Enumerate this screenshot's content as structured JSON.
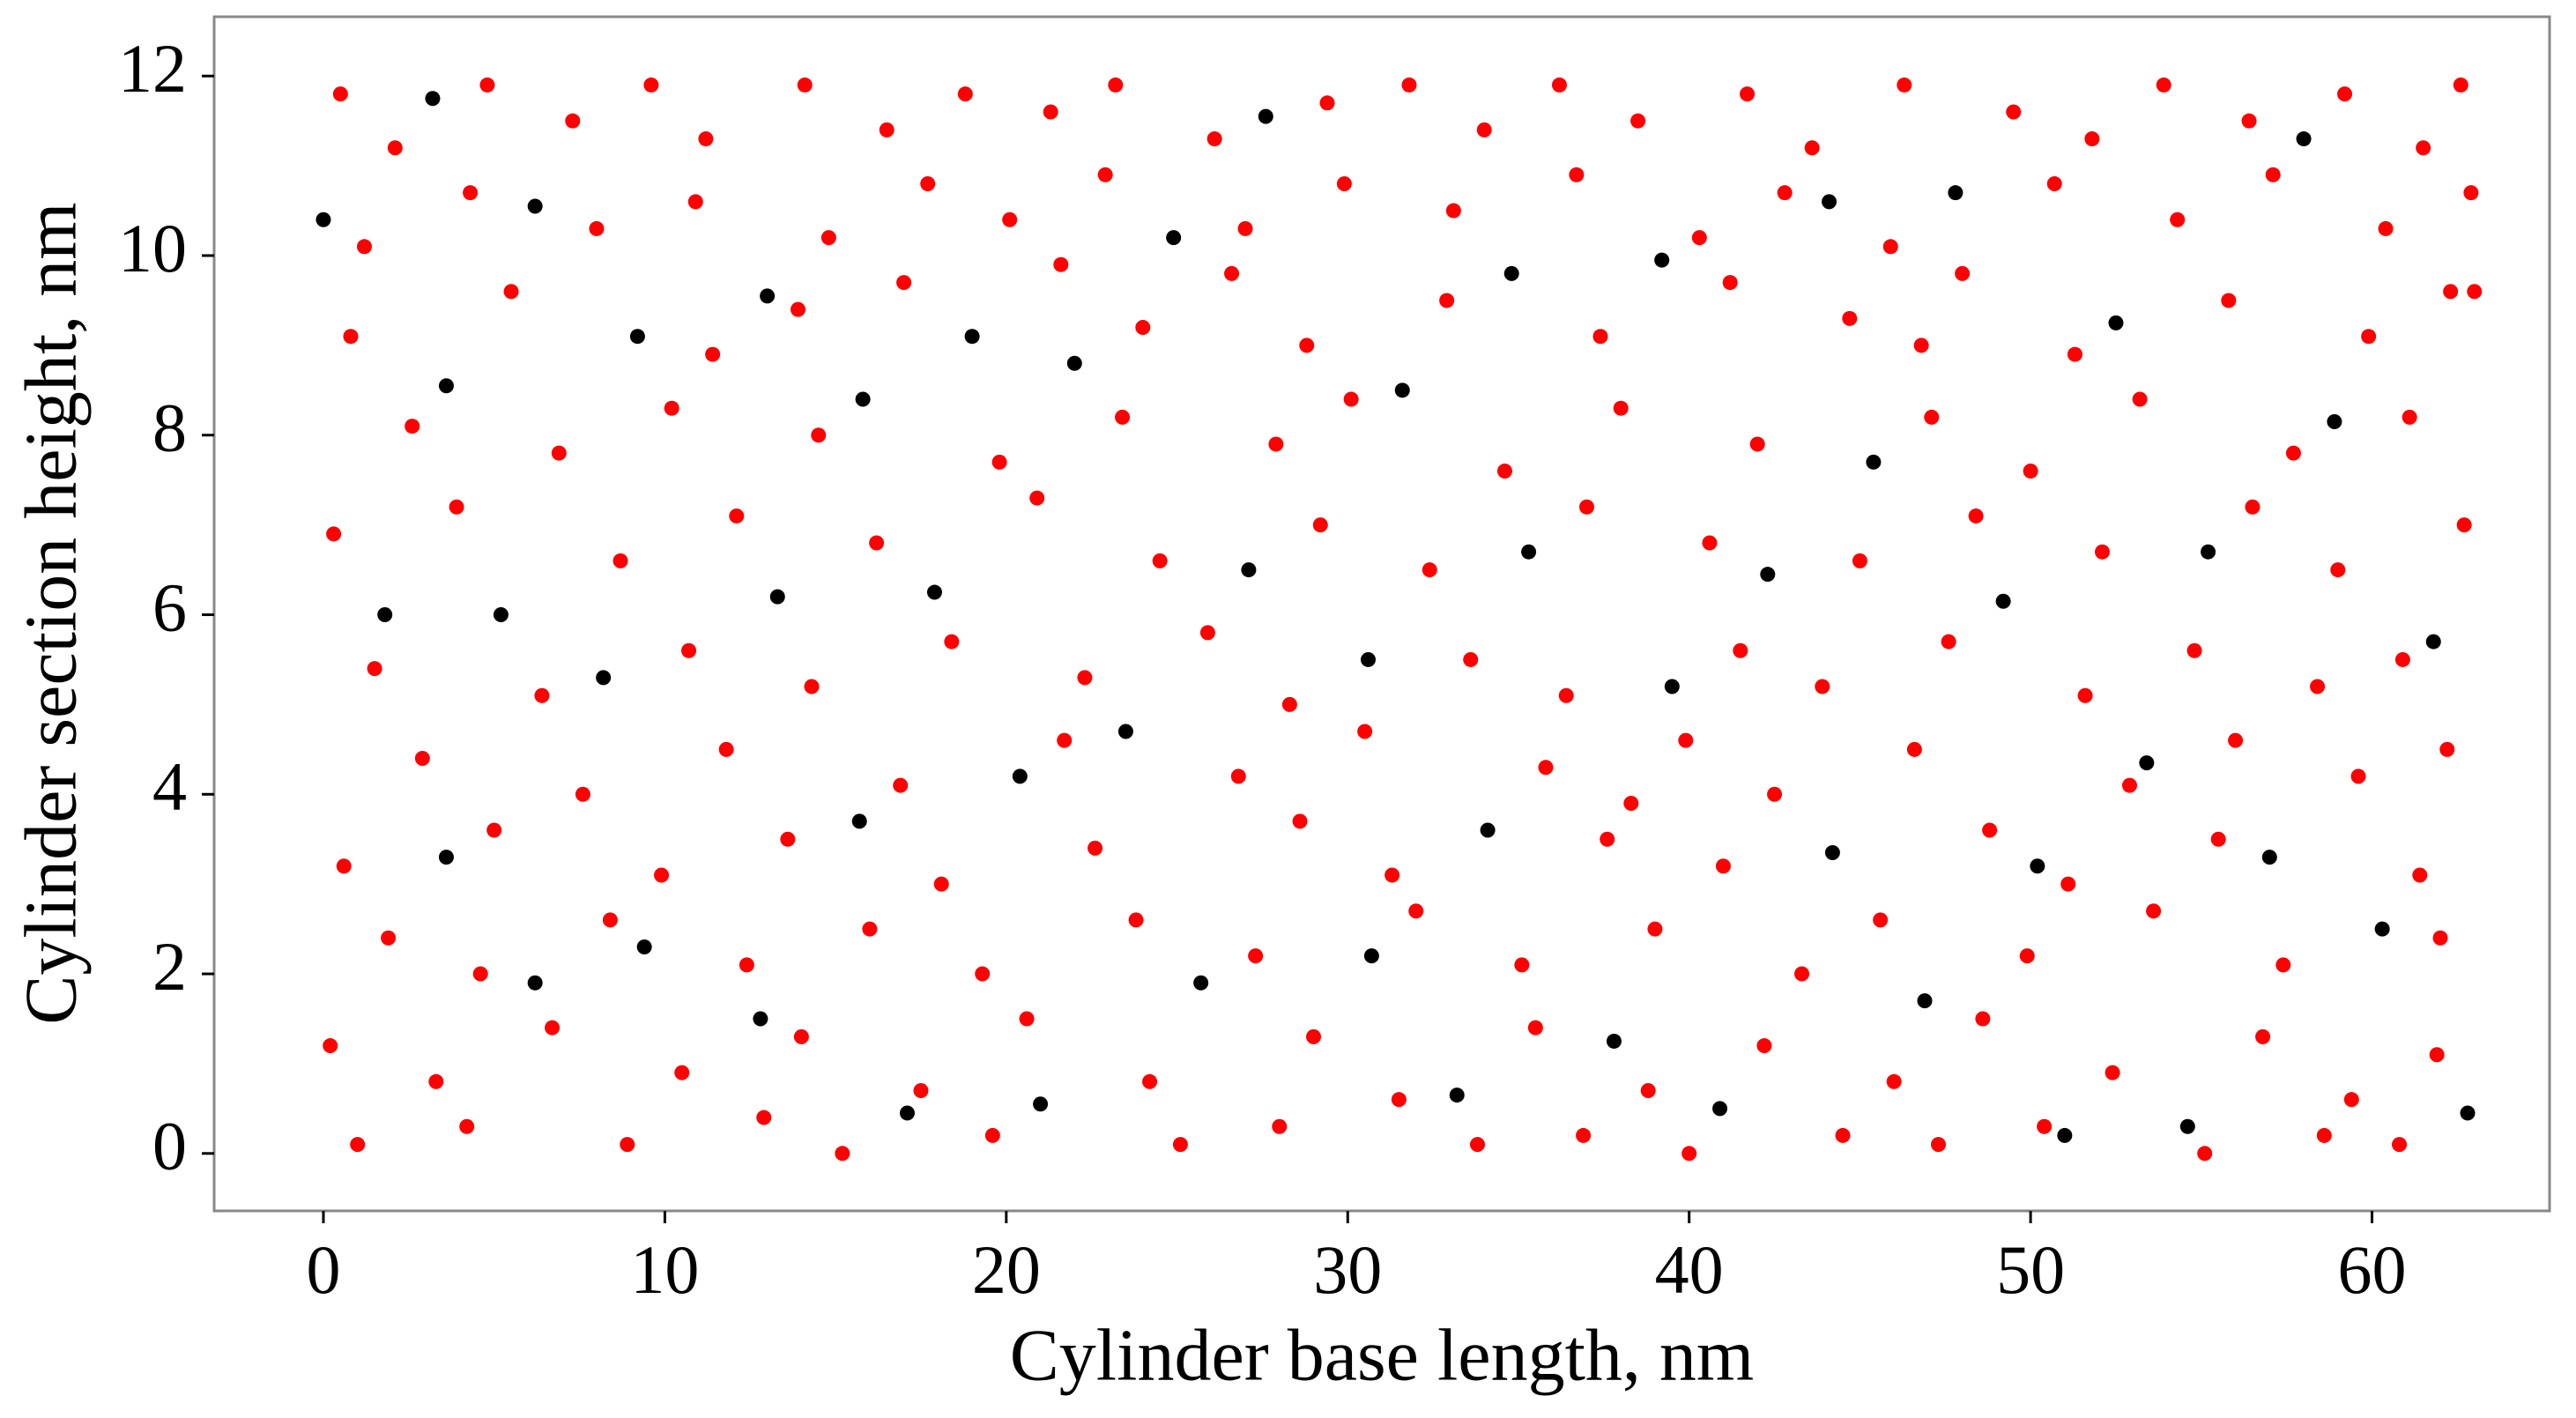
{
  "chart_data": {
    "type": "scatter",
    "xlabel": "Cylinder base length, nm",
    "ylabel": "Cylinder section height, nm",
    "xlim": [
      -3.2,
      65.2
    ],
    "ylim": [
      -0.64,
      12.66
    ],
    "xticks": [
      0,
      10,
      20,
      30,
      40,
      50,
      60
    ],
    "yticks": [
      0,
      2,
      4,
      6,
      8,
      10,
      12
    ],
    "grid": false,
    "series": [
      {
        "color": "#ff0000",
        "x": [
          0.5,
          2.1,
          4.8,
          7.3,
          9.6,
          11.2,
          14.1,
          16.5,
          18.8,
          21.3,
          23.2,
          26.1,
          29.4,
          31.8,
          34.0,
          36.2,
          38.5,
          41.7,
          43.6,
          46.3,
          49.5,
          51.8,
          53.9,
          56.4,
          59.2,
          61.5,
          62.6,
          1.2,
          4.3,
          8.0,
          10.9,
          14.8,
          17.7,
          20.1,
          22.9,
          27.0,
          29.9,
          33.1,
          36.7,
          40.3,
          42.8,
          45.9,
          50.7,
          54.3,
          57.1,
          60.4,
          62.9,
          0.8,
          5.5,
          11.4,
          13.9,
          17.0,
          24.0,
          26.6,
          28.8,
          32.9,
          37.4,
          41.2,
          44.7,
          48.0,
          51.3,
          55.8,
          59.9,
          62.3,
          2.6,
          6.9,
          10.2,
          14.5,
          19.8,
          23.4,
          27.9,
          30.1,
          34.6,
          38.0,
          42.0,
          47.1,
          50.0,
          53.2,
          57.7,
          61.1,
          0.3,
          3.9,
          8.7,
          12.1,
          16.2,
          20.9,
          24.5,
          29.2,
          32.4,
          37.0,
          40.6,
          45.0,
          48.4,
          52.1,
          56.5,
          59.0,
          62.7,
          1.5,
          6.4,
          10.7,
          14.3,
          18.4,
          22.3,
          25.9,
          28.3,
          33.6,
          36.4,
          41.5,
          43.9,
          47.6,
          51.6,
          54.8,
          58.4,
          60.9,
          2.9,
          7.6,
          11.8,
          16.9,
          21.7,
          26.8,
          30.5,
          35.8,
          39.9,
          42.5,
          46.6,
          52.9,
          56.0,
          59.6,
          62.2,
          0.6,
          5.0,
          9.9,
          13.6,
          18.1,
          22.6,
          28.6,
          31.3,
          37.6,
          41.0,
          48.8,
          51.1,
          55.5,
          61.4,
          1.9,
          4.6,
          8.4,
          12.4,
          16.0,
          19.3,
          23.8,
          27.3,
          32.0,
          35.1,
          39.0,
          43.3,
          45.6,
          49.9,
          53.6,
          57.4,
          62.0,
          0.2,
          3.3,
          6.7,
          10.5,
          14.0,
          17.5,
          20.6,
          24.2,
          29.0,
          31.5,
          35.5,
          38.8,
          42.2,
          46.0,
          48.6,
          52.4,
          56.8,
          59.4,
          61.9,
          1.0,
          4.2,
          8.9,
          12.9,
          15.2,
          19.6,
          25.1,
          28.0,
          33.8,
          36.9,
          40.0,
          44.5,
          47.3,
          50.4,
          55.1,
          58.6,
          60.8,
          63.0,
          21.6,
          38.3,
          46.8
        ],
        "y": [
          11.8,
          11.2,
          11.9,
          11.5,
          11.9,
          11.3,
          11.9,
          11.4,
          11.8,
          11.6,
          11.9,
          11.3,
          11.7,
          11.9,
          11.4,
          11.9,
          11.5,
          11.8,
          11.2,
          11.9,
          11.6,
          11.3,
          11.9,
          11.5,
          11.8,
          11.2,
          11.9,
          10.1,
          10.7,
          10.3,
          10.6,
          10.2,
          10.8,
          10.4,
          10.9,
          10.3,
          10.8,
          10.5,
          10.9,
          10.2,
          10.7,
          10.1,
          10.8,
          10.4,
          10.9,
          10.3,
          10.7,
          9.1,
          9.6,
          8.9,
          9.4,
          9.7,
          9.2,
          9.8,
          9.0,
          9.5,
          9.1,
          9.7,
          9.3,
          9.8,
          8.9,
          9.5,
          9.1,
          9.6,
          8.1,
          7.8,
          8.3,
          8.0,
          7.7,
          8.2,
          7.9,
          8.4,
          7.6,
          8.3,
          7.9,
          8.2,
          7.6,
          8.4,
          7.8,
          8.2,
          6.9,
          7.2,
          6.6,
          7.1,
          6.8,
          7.3,
          6.6,
          7.0,
          6.5,
          7.2,
          6.8,
          6.6,
          7.1,
          6.7,
          7.2,
          6.5,
          7.0,
          5.4,
          5.1,
          5.6,
          5.2,
          5.7,
          5.3,
          5.8,
          5.0,
          5.5,
          5.1,
          5.6,
          5.2,
          5.7,
          5.1,
          5.6,
          5.2,
          5.5,
          4.4,
          4.0,
          4.5,
          4.1,
          4.6,
          4.2,
          4.7,
          4.3,
          4.6,
          4.0,
          4.5,
          4.1,
          4.6,
          4.2,
          4.5,
          3.2,
          3.6,
          3.1,
          3.5,
          3.0,
          3.4,
          3.7,
          3.1,
          3.5,
          3.2,
          3.6,
          3.0,
          3.5,
          3.1,
          2.4,
          2.0,
          2.6,
          2.1,
          2.5,
          2.0,
          2.6,
          2.2,
          2.7,
          2.1,
          2.5,
          2.0,
          2.6,
          2.2,
          2.7,
          2.1,
          2.4,
          1.2,
          0.8,
          1.4,
          0.9,
          1.3,
          0.7,
          1.5,
          0.8,
          1.3,
          0.6,
          1.4,
          0.7,
          1.2,
          0.8,
          1.5,
          0.9,
          1.3,
          0.6,
          1.1,
          0.1,
          0.3,
          0.1,
          0.4,
          0,
          0.2,
          0.1,
          0.3,
          0.1,
          0.2,
          0,
          0.2,
          0.1,
          0.3,
          0,
          0.2,
          0.1,
          9.6,
          9.9,
          3.9,
          9.0
        ]
      },
      {
        "color": "#000000",
        "x": [
          0,
          3.2,
          6.2,
          9.2,
          3.6,
          13,
          1.8,
          5.2,
          8.2,
          13.3,
          3.6,
          6.2,
          9.4,
          12.8,
          15.8,
          17.9,
          19,
          22,
          24.9,
          27.6,
          15.7,
          17.1,
          20.4,
          21,
          23.5,
          25.7,
          27.1,
          30.6,
          31.6,
          30.7,
          33.2,
          34.1,
          34.8,
          35.3,
          37.8,
          39.2,
          39.5,
          40.9,
          42.3,
          44.1,
          45.4,
          44.2,
          46.9,
          47.8,
          49.2,
          50.2,
          51,
          52.5,
          53.4,
          55.2,
          54.6,
          57,
          58,
          58.9,
          60.3,
          61.8,
          62.8
        ],
        "y": [
          10.4,
          11.75,
          10.55,
          9.1,
          8.55,
          9.55,
          6,
          6,
          5.3,
          6.2,
          3.3,
          1.9,
          2.3,
          1.5,
          8.4,
          6.25,
          9.1,
          8.8,
          10.2,
          11.55,
          3.7,
          0.45,
          4.2,
          0.55,
          4.7,
          1.9,
          6.5,
          5.5,
          8.5,
          2.2,
          0.65,
          3.6,
          9.8,
          6.7,
          1.25,
          9.95,
          5.2,
          0.5,
          6.45,
          10.6,
          7.7,
          3.35,
          1.7,
          10.7,
          6.15,
          3.2,
          0.2,
          9.25,
          4.35,
          6.7,
          0.3,
          3.3,
          11.3,
          8.15,
          2.5,
          5.7,
          0.45
        ]
      }
    ]
  }
}
